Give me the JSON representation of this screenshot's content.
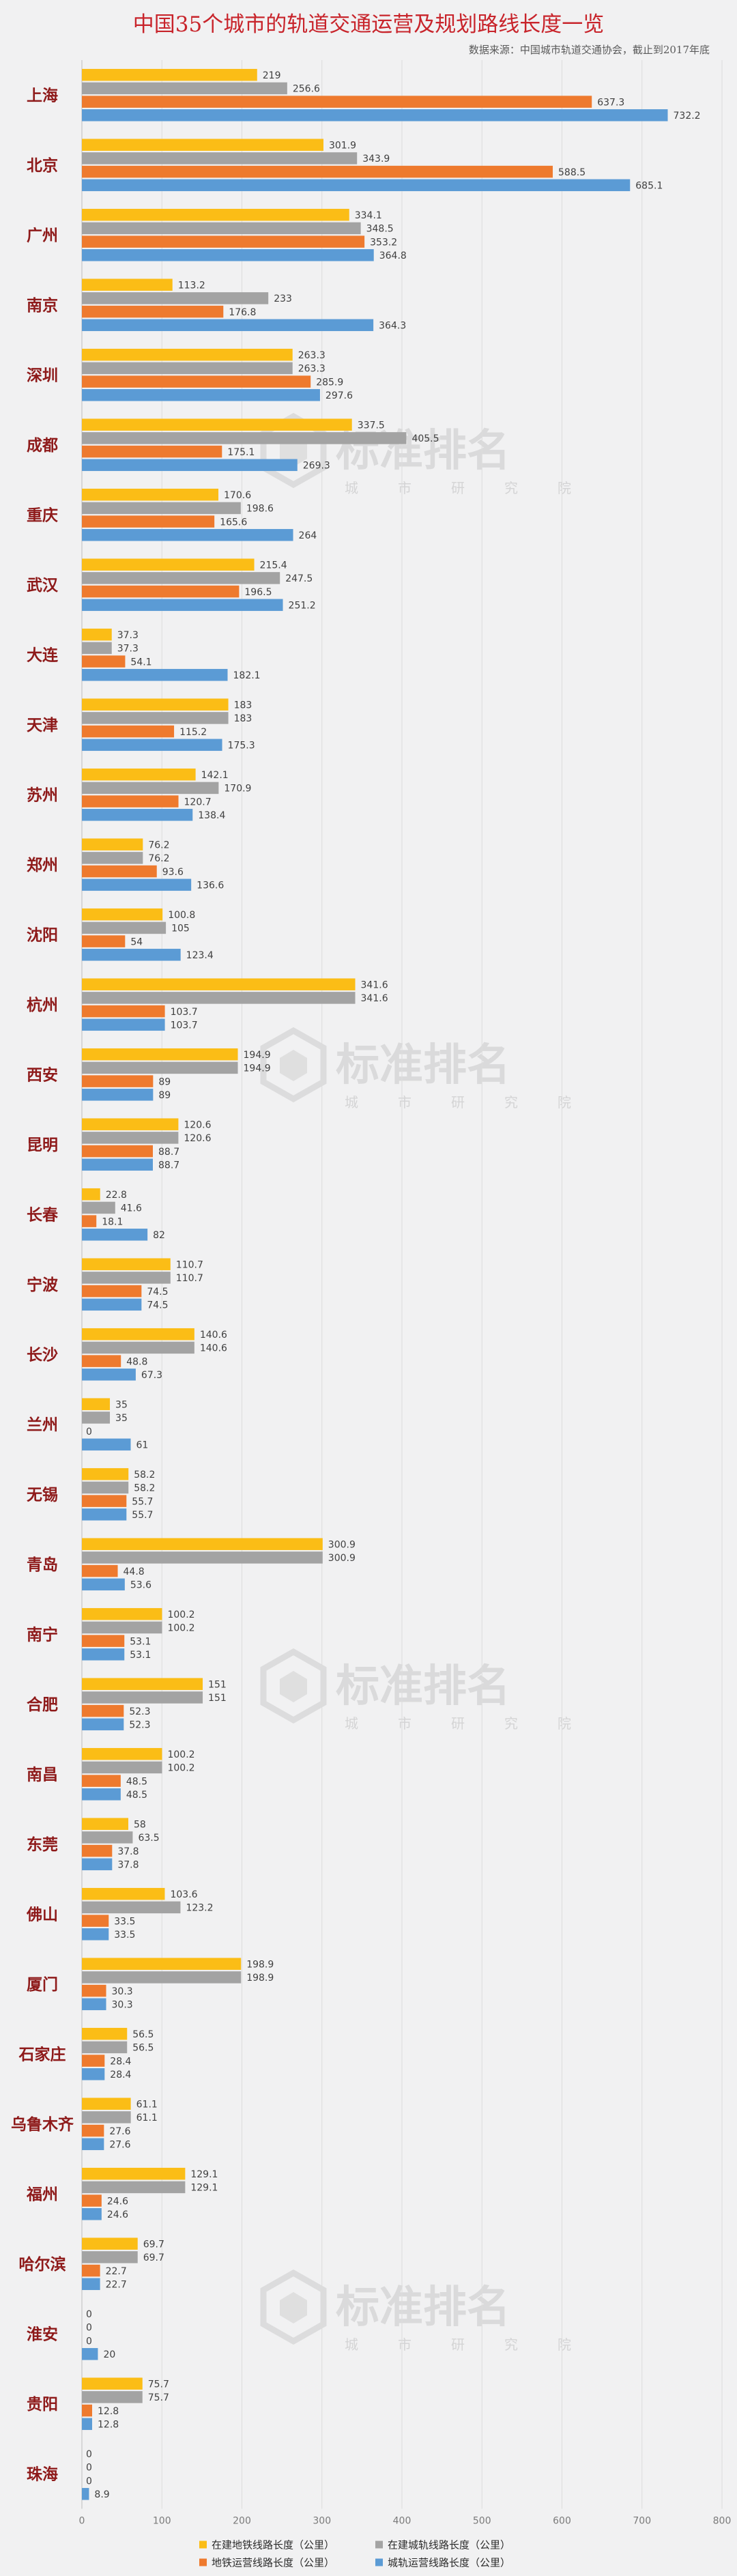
{
  "chart_data": {
    "type": "bar",
    "orientation": "horizontal",
    "title": "中国35个城市的轨道交通运营及规划路线长度一览",
    "subtitle": "数据来源：中国城市轨道交通协会，截止到2017年底",
    "xlim": [
      0,
      800
    ],
    "xticks": [
      "0",
      "100",
      "200",
      "300",
      "400",
      "500",
      "600",
      "700",
      "800"
    ],
    "grid": "vertical",
    "legend_position": "bottom",
    "categories": [
      "上海",
      "北京",
      "广州",
      "南京",
      "深圳",
      "成都",
      "重庆",
      "武汉",
      "大连",
      "天津",
      "苏州",
      "郑州",
      "沈阳",
      "杭州",
      "西安",
      "昆明",
      "长春",
      "宁波",
      "长沙",
      "兰州",
      "无锡",
      "青岛",
      "南宁",
      "合肥",
      "南昌",
      "东莞",
      "佛山",
      "厦门",
      "石家庄",
      "乌鲁木齐",
      "福州",
      "哈尔滨",
      "淮安",
      "贵阳",
      "珠海"
    ],
    "series": [
      {
        "name": "在建地铁线路长度（公里）",
        "color": "#fbbd16",
        "values": [
          219,
          301.9,
          334.1,
          113.2,
          263.3,
          337.5,
          170.6,
          215.4,
          37.3,
          183,
          142.1,
          76.2,
          100.8,
          341.6,
          194.9,
          120.6,
          22.8,
          110.7,
          140.6,
          35,
          58.2,
          300.9,
          100.2,
          151,
          100.2,
          58,
          103.6,
          198.9,
          56.5,
          61.1,
          129.1,
          69.7,
          0,
          75.7,
          0
        ]
      },
      {
        "name": "在建城轨线路长度（公里）",
        "color": "#a3a3a3",
        "values": [
          256.6,
          343.9,
          348.5,
          233,
          263.3,
          405.5,
          198.6,
          247.5,
          37.3,
          183,
          170.9,
          76.2,
          105,
          341.6,
          194.9,
          120.6,
          41.6,
          110.7,
          140.6,
          35,
          58.2,
          300.9,
          100.2,
          151,
          100.2,
          63.5,
          123.2,
          198.9,
          56.5,
          61.1,
          129.1,
          69.7,
          0,
          75.7,
          0
        ]
      },
      {
        "name": "地铁运营线路长度（公里）",
        "color": "#ee7a2e",
        "values": [
          637.3,
          588.5,
          353.2,
          176.8,
          285.9,
          175.1,
          165.6,
          196.5,
          54.1,
          115.2,
          120.7,
          93.6,
          54,
          103.7,
          89,
          88.7,
          18.1,
          74.5,
          48.8,
          0,
          55.7,
          44.8,
          53.1,
          52.3,
          48.5,
          37.8,
          33.5,
          30.3,
          28.4,
          27.6,
          24.6,
          22.7,
          0,
          12.8,
          0
        ]
      },
      {
        "name": "城轨运营线路长度（公里）",
        "color": "#5b9bd5",
        "values": [
          732.2,
          685.1,
          364.8,
          364.3,
          297.6,
          269.3,
          264,
          251.2,
          182.1,
          175.3,
          138.4,
          136.6,
          123.4,
          103.7,
          89,
          88.7,
          82,
          74.5,
          67.3,
          61,
          55.7,
          53.6,
          53.1,
          52.3,
          48.5,
          37.8,
          33.5,
          30.3,
          28.4,
          27.6,
          24.6,
          22.7,
          20,
          12.8,
          8.9
        ]
      }
    ]
  },
  "watermark": {
    "main": "标准排名",
    "sub": [
      "城",
      "市",
      "研",
      "究",
      "院"
    ]
  }
}
